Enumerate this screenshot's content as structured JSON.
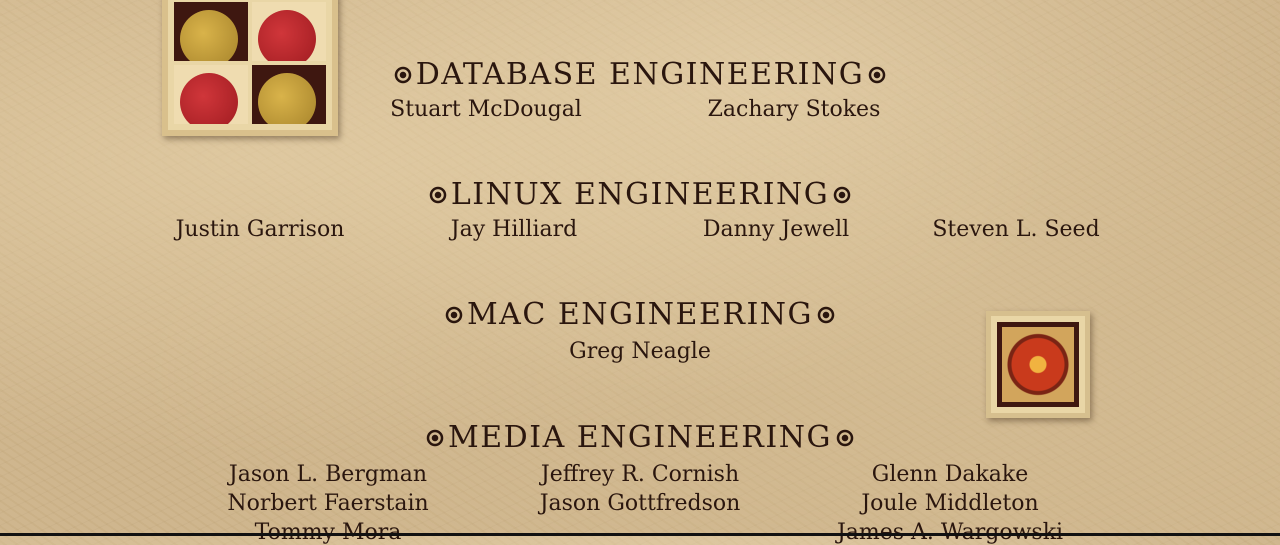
{
  "sections": [
    {
      "heading": "DATABASE ENGINEERING",
      "names": [
        "Stuart McDougal",
        "Zachary Stokes"
      ]
    },
    {
      "heading": "LINUX ENGINEERING",
      "names": [
        "Justin Garrison",
        "Jay Hilliard",
        "Danny Jewell",
        "Steven L. Seed"
      ]
    },
    {
      "heading": "MAC ENGINEERING",
      "names": [
        "Greg Neagle"
      ]
    },
    {
      "heading": "MEDIA ENGINEERING",
      "names": [
        "Jason L. Bergman",
        "Jeffrey R. Cornish",
        "Glenn Dakake",
        "Norbert Faerstain",
        "Jason Gottfredson",
        "Joule Middleton",
        "Tommy Mora",
        "James A. Wargowski"
      ]
    }
  ],
  "colors": {
    "text": "#2a160e",
    "paper": "#cdb48a"
  },
  "icons": {
    "heading_ornament": "spiral-icon"
  }
}
